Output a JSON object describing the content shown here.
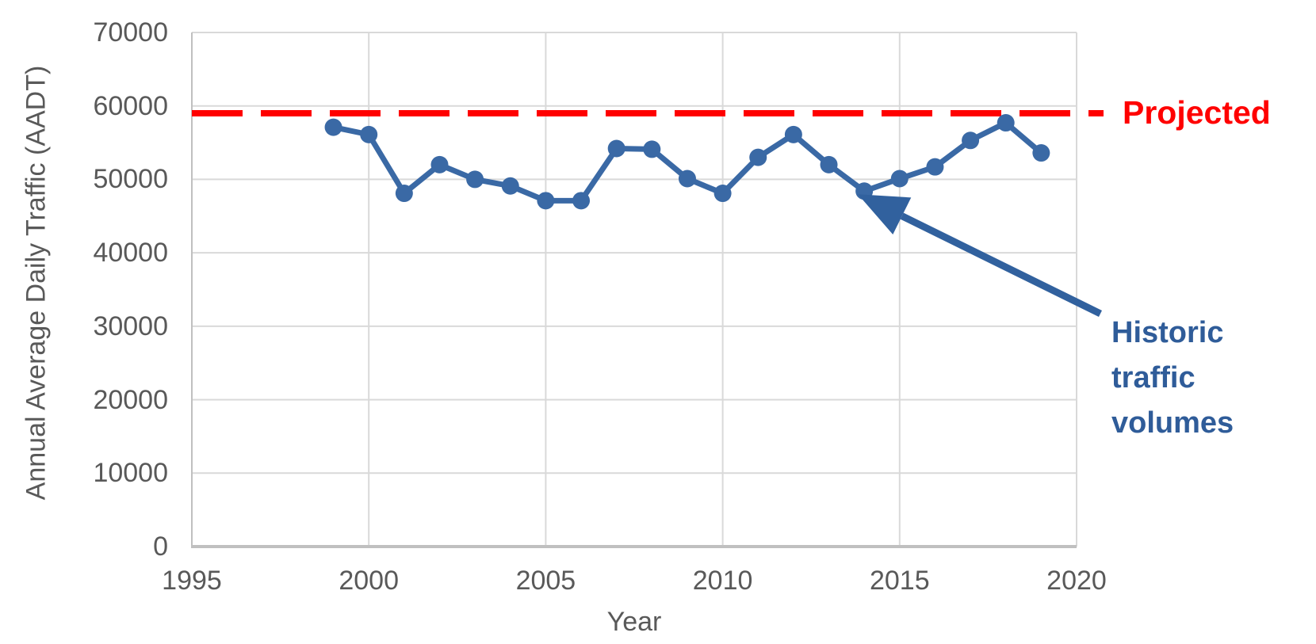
{
  "chart_data": {
    "type": "line",
    "title": "",
    "xlabel": "Year",
    "ylabel": "Annual Average Daily Traffic (AADT)",
    "xlim": [
      1995,
      2020
    ],
    "ylim": [
      0,
      70000
    ],
    "x_ticks": [
      1995,
      2000,
      2005,
      2010,
      2015,
      2020
    ],
    "y_ticks": [
      0,
      10000,
      20000,
      30000,
      40000,
      50000,
      60000,
      70000
    ],
    "grid": true,
    "legend": "none",
    "series": [
      {
        "name": "Historic traffic volumes",
        "style": "solid-line-with-markers",
        "x": [
          1999,
          2000,
          2001,
          2002,
          2003,
          2004,
          2005,
          2006,
          2007,
          2008,
          2009,
          2010,
          2011,
          2012,
          2013,
          2014,
          2015,
          2016,
          2017,
          2018,
          2019
        ],
        "values": [
          57100,
          56100,
          48100,
          52000,
          50000,
          49100,
          47100,
          47100,
          54200,
          54100,
          50100,
          48100,
          53000,
          56100,
          52000,
          48400,
          50100,
          51700,
          55300,
          57700,
          53600
        ]
      },
      {
        "name": "Projected",
        "style": "dashed-horizontal-line",
        "value": 59000
      }
    ],
    "annotations": [
      {
        "id": "projected",
        "text": "Projected",
        "color": "#FF0000"
      },
      {
        "id": "historic",
        "text": "Historic\ntraffic\nvolumes",
        "color": "#2F5C99",
        "arrow_points_to": {
          "year": 2014,
          "value": 48400
        }
      }
    ]
  },
  "colors": {
    "historic_line": "#3A69A5",
    "projected_line": "#FF0000",
    "annotation_arrow": "#31619E",
    "annotation_text_blue": "#2F5C99",
    "annotation_text_red": "#FF0000",
    "tick_text": "#595959",
    "gridline": "#D9D9D9",
    "axis_line": "#C0C0C0"
  }
}
